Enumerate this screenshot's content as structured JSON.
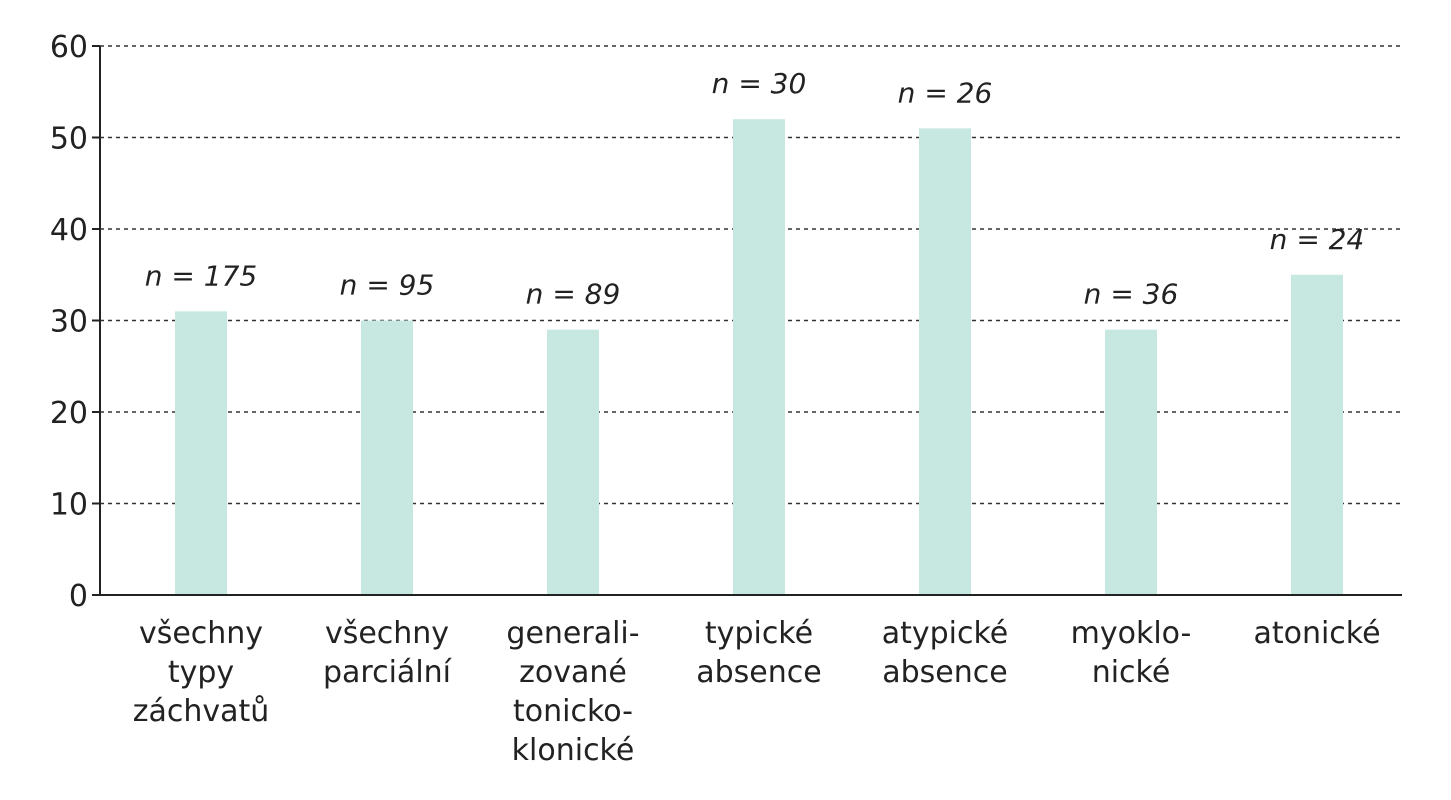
{
  "chart_data": {
    "type": "bar",
    "title": "",
    "xlabel": "",
    "ylabel": "",
    "ylim": [
      0,
      60
    ],
    "yticks": [
      "0",
      "10",
      "20",
      "30",
      "40",
      "50",
      "60"
    ],
    "grid": true,
    "categories": [
      [
        "všechny",
        "typy",
        "záchvatů"
      ],
      [
        "všechny",
        "parciální"
      ],
      [
        "generali-",
        "zované",
        "tonicko-",
        "klonické"
      ],
      [
        "typické",
        "absence"
      ],
      [
        "atypické",
        "absence"
      ],
      [
        "myoklo-",
        "nické"
      ],
      [
        "atonické"
      ]
    ],
    "values": [
      31,
      30,
      29,
      52,
      51,
      29,
      35
    ],
    "data_labels": [
      "n = 175",
      "n = 95",
      "n = 89",
      "n = 30",
      "n = 26",
      "n = 36",
      "n = 24"
    ],
    "colors": {
      "bar": "#c7e8e0",
      "grid": "#333333",
      "axis": "#222222",
      "text": "#222222"
    }
  }
}
